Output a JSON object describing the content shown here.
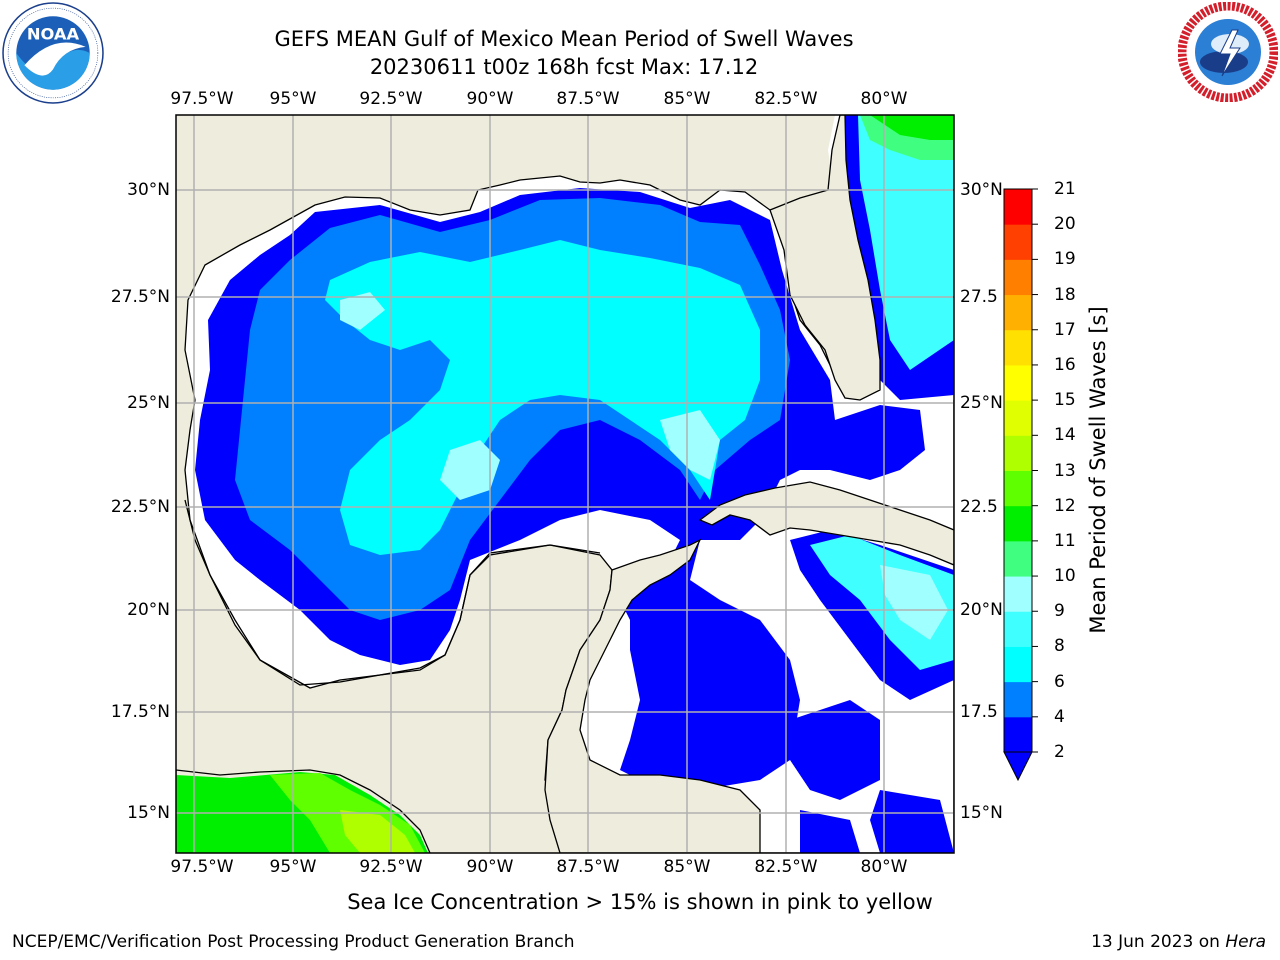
{
  "title": {
    "line1": "GEFS MEAN Gulf of Mexico Mean Period of Swell Waves",
    "line2": "20230611 t00z 168h fcst   Max: 17.12"
  },
  "logos": {
    "noaa": {
      "text": "NOAA",
      "ring_text": "NATIONAL OCEANIC AND ATMOSPHERIC ADMINISTRATION · U.S. DEPARTMENT OF COMMERCE"
    },
    "nws": {
      "ring_text": "NATIONAL WEATHER SERVICE"
    }
  },
  "map": {
    "lon_labels": [
      "97.5°W",
      "95°W",
      "92.5°W",
      "90°W",
      "87.5°W",
      "85°W",
      "82.5°W",
      "80°W"
    ],
    "lat_labels_left": [
      "30°N",
      "27.5°N",
      "25°N",
      "22.5°N",
      "20°N",
      "17.5°N",
      "15°N"
    ],
    "lat_labels_right": [
      "30°N",
      "27.5",
      "25°N",
      "22.5",
      "20°N",
      "17.5",
      "15°N"
    ],
    "land_color": "#eeecdc",
    "grid_color": "#b0b0b0"
  },
  "colorbar": {
    "title": "Mean Period of Swell Waves [s]",
    "ticks": [
      "2",
      "4",
      "6",
      "8",
      "9",
      "10",
      "11",
      "12",
      "13",
      "14",
      "15",
      "16",
      "17",
      "18",
      "19",
      "20",
      "21"
    ],
    "colors": [
      "#0000ff",
      "#0080ff",
      "#00ffff",
      "#40ffff",
      "#a0ffff",
      "#40ff80",
      "#00ee00",
      "#60ff00",
      "#b0ff00",
      "#e0ff00",
      "#ffff00",
      "#ffe000",
      "#ffb000",
      "#ff8000",
      "#ff4000",
      "#ff0000"
    ]
  },
  "note": "Sea Ice Concentration > 15% is shown in pink to yellow",
  "footer": {
    "left": "NCEP/EMC/Verification Post Processing Product Generation Branch",
    "right_prefix": "13 Jun 2023 on ",
    "right_machine": "Hera"
  }
}
